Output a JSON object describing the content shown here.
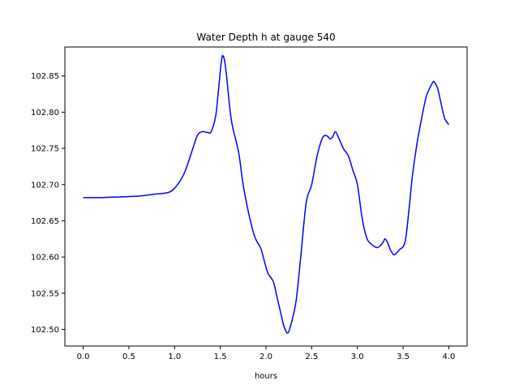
{
  "chart_data": {
    "type": "line",
    "title": "Water Depth h at gauge 540",
    "xlabel": "hours",
    "ylabel": "",
    "xlim": [
      -0.2,
      4.2
    ],
    "ylim": [
      102.477,
      102.89
    ],
    "xticks": [
      0.0,
      0.5,
      1.0,
      1.5,
      2.0,
      2.5,
      3.0,
      3.5,
      4.0
    ],
    "xtick_labels": [
      "0.0",
      "0.5",
      "1.0",
      "1.5",
      "2.0",
      "2.5",
      "3.0",
      "3.5",
      "4.0"
    ],
    "yticks": [
      102.5,
      102.55,
      102.6,
      102.65,
      102.7,
      102.75,
      102.8,
      102.85
    ],
    "ytick_labels": [
      "102.50",
      "102.55",
      "102.60",
      "102.65",
      "102.70",
      "102.75",
      "102.80",
      "102.85"
    ],
    "grid": false,
    "line_color": "#0000ff",
    "series": [
      {
        "x": [
          0.0,
          0.2,
          0.4,
          0.6,
          0.8,
          0.95,
          1.05,
          1.12,
          1.2,
          1.25,
          1.3,
          1.36,
          1.4,
          1.45,
          1.48,
          1.51,
          1.53,
          1.56,
          1.62,
          1.7,
          1.75,
          1.82,
          1.88,
          1.94,
          1.97,
          2.02,
          2.08,
          2.12,
          2.17,
          2.2,
          2.24,
          2.28,
          2.33,
          2.38,
          2.44,
          2.5,
          2.56,
          2.62,
          2.67,
          2.7,
          2.73,
          2.76,
          2.8,
          2.85,
          2.9,
          2.95,
          3.0,
          3.05,
          3.1,
          3.15,
          3.22,
          3.28,
          3.3,
          3.33,
          3.36,
          3.4,
          3.43,
          3.46,
          3.52,
          3.56,
          3.6,
          3.65,
          3.7,
          3.75,
          3.79,
          3.83,
          3.85,
          3.88,
          3.91,
          3.95,
          3.98,
          4.0
        ],
        "y": [
          102.682,
          102.682,
          102.683,
          102.684,
          102.687,
          102.69,
          102.703,
          102.72,
          102.75,
          102.768,
          102.773,
          102.772,
          102.773,
          102.795,
          102.83,
          102.868,
          102.878,
          102.86,
          102.79,
          102.745,
          102.7,
          102.655,
          102.627,
          102.613,
          102.6,
          102.578,
          102.566,
          102.545,
          102.518,
          102.503,
          102.495,
          102.51,
          102.54,
          102.6,
          102.675,
          102.7,
          102.74,
          102.765,
          102.767,
          102.763,
          102.766,
          102.773,
          102.763,
          102.749,
          102.74,
          102.72,
          102.7,
          102.655,
          102.627,
          102.618,
          102.613,
          102.62,
          102.625,
          102.62,
          102.61,
          102.603,
          102.606,
          102.61,
          102.62,
          102.66,
          102.71,
          102.755,
          102.79,
          102.82,
          102.833,
          102.842,
          102.84,
          102.832,
          102.815,
          102.793,
          102.786,
          102.783
        ]
      }
    ]
  }
}
